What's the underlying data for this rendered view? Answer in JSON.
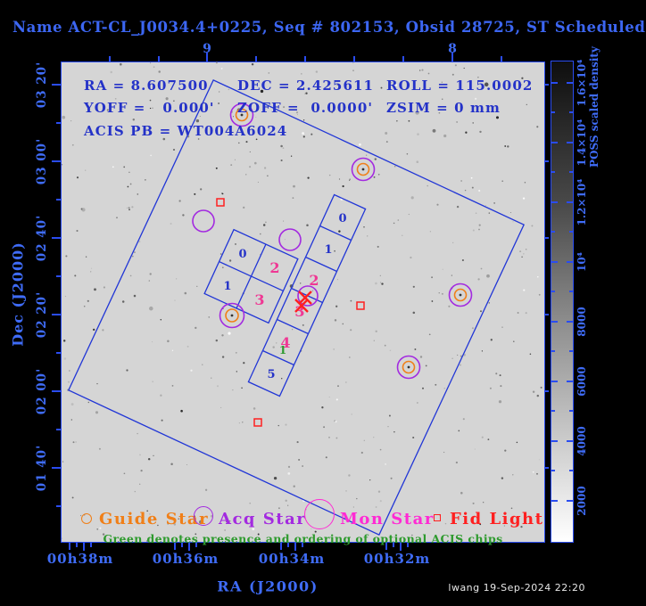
{
  "title": "Name ACT-CL_J0034.4+0225, Seq # 802153, Obsid 28725, ST Scheduled",
  "info": {
    "ra": "RA = 8.607500",
    "dec": "DEC = 2.425611",
    "roll": "ROLL = 115.0002",
    "yoff": "YOFF =   0.000'",
    "zoff": "ZOFF =  0.0000'",
    "zsim": "ZSIM = 0 mm",
    "acis_pb": "ACIS PB = WT004A6024"
  },
  "axes": {
    "x_title": "RA (J2000)",
    "y_title": "Dec (J2000)",
    "top_labels": [
      "9",
      "8"
    ],
    "bottom_labels": [
      "00h38m",
      "00h36m",
      "00h34m",
      "00h32m"
    ],
    "left_labels": [
      "03 20'",
      "03 00'",
      "02 40'",
      "02 20'",
      "02 00'",
      "01 40'"
    ]
  },
  "colorbar": {
    "title": "POSS scaled density",
    "labels": [
      "1.6×10⁴",
      "1.4×10⁴",
      "1.2×10⁴",
      "10⁴",
      "8000",
      "6000",
      "4000",
      "2000"
    ]
  },
  "chips": {
    "acis_i": [
      "0",
      "1",
      "2",
      "3"
    ],
    "acis_s": [
      "0",
      "1",
      "2",
      "3",
      "4",
      "5"
    ],
    "optional_order_1": "1"
  },
  "legend": {
    "guide": "Guide Star",
    "acq": "Acq Star",
    "mon": "Mon Star",
    "fid": "Fid Light",
    "note": "Green denotes presence and ordering of optional ACIS chips"
  },
  "footer": {
    "stamp": "lwang 19-Sep-2024 22:20"
  },
  "colors": {
    "axis_blue": "#3f6cf7",
    "frame_blue": "#2a4cf0",
    "annotation_blue": "#2432c8",
    "chip_magenta": "#ef3894",
    "acq_purple": "#a32ae0",
    "guide_orange": "#f07f18",
    "mon_magenta": "#ff2ad4",
    "fid_red": "#ff2020",
    "optional_green": "#2d9a2d",
    "field_gray": "#d5d5d5"
  }
}
